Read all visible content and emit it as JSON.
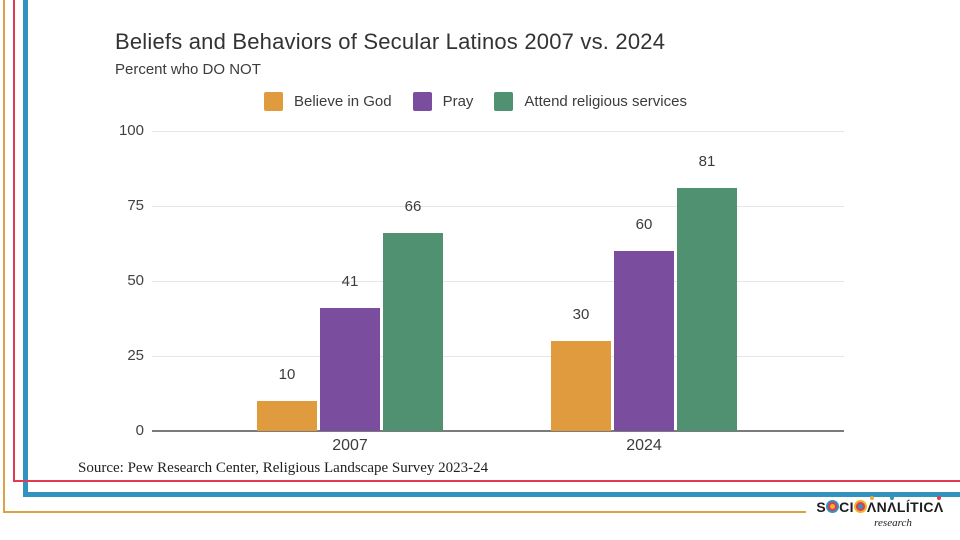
{
  "slide": {
    "title": "Beliefs and Behaviors of Secular Latinos 2007 vs. 2024",
    "subtitle": "Percent who DO NOT",
    "source_note": "Source: Pew Research Center, Religious Landscape Survey 2023-24"
  },
  "chart_data": {
    "type": "bar",
    "title": "Beliefs and Behaviors of Secular Latinos 2007 vs. 2024",
    "subtitle": "Percent who DO NOT",
    "categories": [
      "2007",
      "2024"
    ],
    "series": [
      {
        "name": "Believe in God",
        "color": "#e09b3e",
        "values": [
          10,
          30
        ]
      },
      {
        "name": "Pray",
        "color": "#7a4d9e",
        "values": [
          41,
          60
        ]
      },
      {
        "name": "Attend religious services",
        "color": "#4f9170",
        "values": [
          66,
          81
        ]
      }
    ],
    "ylim": [
      0,
      100
    ],
    "yticks": [
      0,
      25,
      50,
      75,
      100
    ],
    "grid": true,
    "legend_position": "top",
    "value_labels": true
  },
  "frame_colors": {
    "gold": "#dca346",
    "red": "#e13a52",
    "blue": "#3493be"
  },
  "logo": {
    "tagline": "research",
    "brand_spec": [
      {
        "t": "S"
      },
      {
        "t": "O",
        "ring": [
          "#3493be",
          "#e13a52",
          "#f0b429"
        ]
      },
      {
        "t": "CI"
      },
      {
        "t": "O",
        "ring": [
          "#f0b429",
          "#e13a52",
          "#3493be"
        ]
      },
      {
        "t": "A",
        "a": "#f0a93a"
      },
      {
        "t": "N"
      },
      {
        "t": "A",
        "a": "#3493be"
      },
      {
        "t": "L"
      },
      {
        "t": "Í"
      },
      {
        "t": "TIC"
      },
      {
        "t": "A",
        "a": "#e13a52"
      }
    ]
  }
}
